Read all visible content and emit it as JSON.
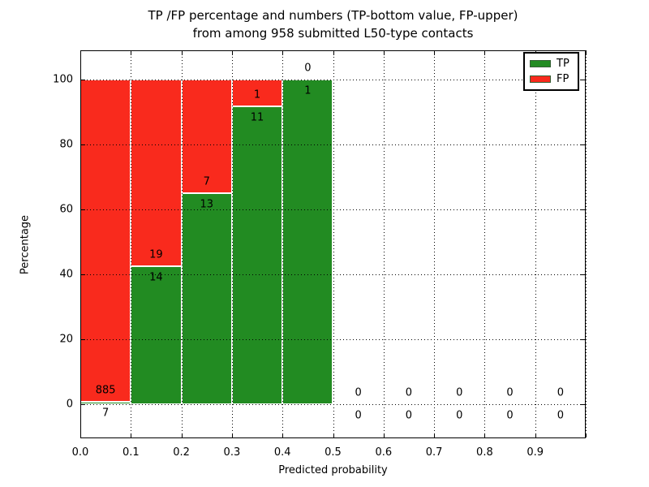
{
  "title": {
    "line1": "TP /FP percentage and numbers (TP-bottom value, FP-upper)",
    "line2": "from among 958 submitted L50-type contacts"
  },
  "axes": {
    "xlabel": "Predicted probability",
    "ylabel": "Percentage"
  },
  "legend": {
    "position": "upper right",
    "items": [
      {
        "label": "TP",
        "color": "#228b22"
      },
      {
        "label": "FP",
        "color": "#f92a1d"
      }
    ]
  },
  "colors": {
    "tp_green": "#228b22",
    "fp_red": "#f92a1d",
    "bar_edge": "#ffffff",
    "grid": "#000000",
    "background": "#ffffff"
  },
  "chart_data": {
    "type": "bar",
    "stacked": true,
    "normalized_to": 100,
    "title": "TP /FP percentage and numbers (TP-bottom value, FP-upper) from among 958 submitted L50-type contacts",
    "xlabel": "Predicted probability",
    "ylabel": "Percentage",
    "total_contacts": 958,
    "xlim": [
      0.0,
      1.0
    ],
    "ylim": [
      -10.5,
      109
    ],
    "grid": "dotted, drawn above bars",
    "legend_position": "upper right",
    "bins": [
      [
        0.0,
        0.1
      ],
      [
        0.1,
        0.2
      ],
      [
        0.2,
        0.3
      ],
      [
        0.3,
        0.4
      ],
      [
        0.4,
        0.5
      ],
      [
        0.5,
        0.6
      ],
      [
        0.6,
        0.7
      ],
      [
        0.7,
        0.8
      ],
      [
        0.8,
        0.9
      ],
      [
        0.9,
        1.0
      ]
    ],
    "series": [
      {
        "name": "TP",
        "color": "#228b22",
        "counts": [
          7,
          14,
          13,
          11,
          1,
          0,
          0,
          0,
          0,
          0
        ]
      },
      {
        "name": "FP",
        "color": "#f92a1d",
        "counts": [
          885,
          19,
          7,
          1,
          0,
          0,
          0,
          0,
          0,
          0
        ]
      }
    ],
    "tp_percent_of_bin": [
      0.78,
      42.42,
      65.0,
      91.67,
      100.0,
      0,
      0,
      0,
      0,
      0
    ],
    "x_ticks": [
      {
        "v": 0.0,
        "label": "0.0"
      },
      {
        "v": 0.1,
        "label": "0.1"
      },
      {
        "v": 0.2,
        "label": "0.2"
      },
      {
        "v": 0.3,
        "label": "0.3"
      },
      {
        "v": 0.4,
        "label": "0.4"
      },
      {
        "v": 0.5,
        "label": "0.5"
      },
      {
        "v": 0.6,
        "label": "0.6"
      },
      {
        "v": 0.7,
        "label": "0.7"
      },
      {
        "v": 0.8,
        "label": "0.8"
      },
      {
        "v": 0.9,
        "label": "0.9"
      },
      {
        "v": 1.0,
        "label": ""
      }
    ],
    "y_ticks": [
      {
        "v": 0,
        "label": "0"
      },
      {
        "v": 20,
        "label": "20"
      },
      {
        "v": 40,
        "label": "40"
      },
      {
        "v": 60,
        "label": "60"
      },
      {
        "v": 80,
        "label": "80"
      },
      {
        "v": 100,
        "label": "100"
      }
    ]
  }
}
